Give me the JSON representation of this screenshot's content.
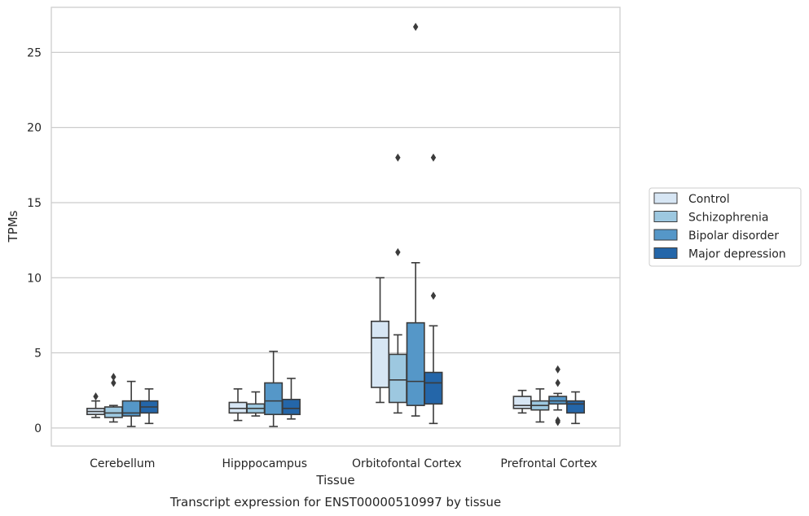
{
  "chart_data": {
    "type": "box",
    "title": "Transcript expression for ENST00000510997 by tissue",
    "xlabel": "Tissue",
    "ylabel": "TPMs",
    "ylim": [
      -1.2,
      28
    ],
    "yticks": [
      0,
      5,
      10,
      15,
      20,
      25
    ],
    "grid": "horizontal",
    "legend_position": "right",
    "categories": [
      "Cerebellum",
      "Hipppocampus",
      "Orbitofontal Cortex",
      "Prefrontal Cortex"
    ],
    "series": [
      {
        "name": "Control",
        "color": "#d7e6f4",
        "boxes": [
          {
            "whislo": 0.7,
            "q1": 0.9,
            "med": 1.1,
            "q3": 1.3,
            "whishi": 1.8,
            "fliers": [
              2.1
            ]
          },
          {
            "whislo": 0.5,
            "q1": 1.0,
            "med": 1.3,
            "q3": 1.7,
            "whishi": 2.6,
            "fliers": []
          },
          {
            "whislo": 1.7,
            "q1": 2.7,
            "med": 6.0,
            "q3": 7.1,
            "whishi": 10.0,
            "fliers": []
          },
          {
            "whislo": 1.0,
            "q1": 1.3,
            "med": 1.5,
            "q3": 2.1,
            "whishi": 2.5,
            "fliers": []
          }
        ]
      },
      {
        "name": "Schizophrenia",
        "color": "#9dc8e0",
        "boxes": [
          {
            "whislo": 0.4,
            "q1": 0.7,
            "med": 1.0,
            "q3": 1.4,
            "whishi": 1.5,
            "fliers": [
              3.0,
              3.4
            ]
          },
          {
            "whislo": 0.8,
            "q1": 1.0,
            "med": 1.3,
            "q3": 1.6,
            "whishi": 2.4,
            "fliers": []
          },
          {
            "whislo": 1.0,
            "q1": 1.7,
            "med": 3.2,
            "q3": 4.9,
            "whishi": 6.2,
            "fliers": [
              11.7,
              18.0
            ]
          },
          {
            "whislo": 0.4,
            "q1": 1.2,
            "med": 1.5,
            "q3": 1.8,
            "whishi": 2.6,
            "fliers": []
          }
        ]
      },
      {
        "name": "Bipolar disorder",
        "color": "#5597c8",
        "boxes": [
          {
            "whislo": 0.1,
            "q1": 0.8,
            "med": 1.0,
            "q3": 1.8,
            "whishi": 3.1,
            "fliers": []
          },
          {
            "whislo": 0.1,
            "q1": 0.9,
            "med": 1.8,
            "q3": 3.0,
            "whishi": 5.1,
            "fliers": []
          },
          {
            "whislo": 0.8,
            "q1": 1.5,
            "med": 3.1,
            "q3": 7.0,
            "whishi": 11.0,
            "fliers": [
              26.7
            ]
          },
          {
            "whislo": 1.2,
            "q1": 1.6,
            "med": 1.8,
            "q3": 2.1,
            "whishi": 2.3,
            "fliers": [
              3.0,
              3.9,
              0.4,
              0.5
            ]
          }
        ]
      },
      {
        "name": "Major depression",
        "color": "#2466a9",
        "boxes": [
          {
            "whislo": 0.3,
            "q1": 1.0,
            "med": 1.4,
            "q3": 1.8,
            "whishi": 2.6,
            "fliers": []
          },
          {
            "whislo": 0.6,
            "q1": 0.9,
            "med": 1.3,
            "q3": 1.9,
            "whishi": 3.3,
            "fliers": []
          },
          {
            "whislo": 0.3,
            "q1": 1.6,
            "med": 3.0,
            "q3": 3.7,
            "whishi": 6.8,
            "fliers": [
              8.8,
              18.0
            ]
          },
          {
            "whislo": 0.3,
            "q1": 1.0,
            "med": 1.6,
            "q3": 1.8,
            "whishi": 2.4,
            "fliers": []
          }
        ]
      }
    ]
  }
}
